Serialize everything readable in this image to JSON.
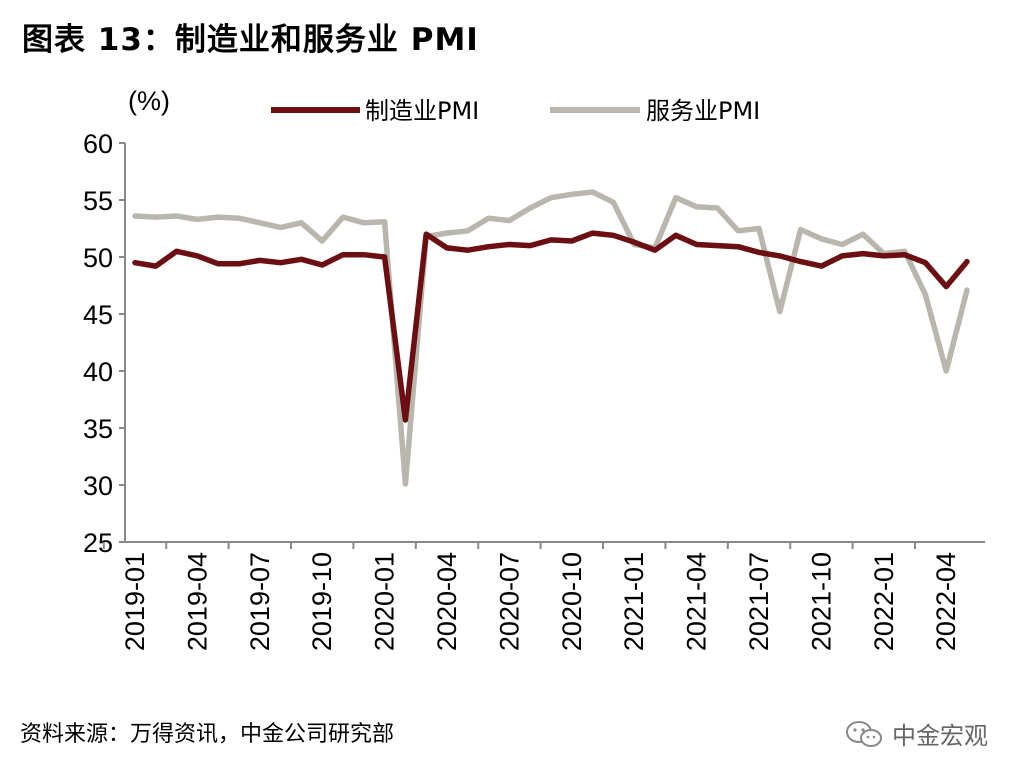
{
  "title": "图表 13：制造业和服务业 PMI",
  "source": "资料来源：万得资讯，中金公司研究部",
  "watermark": "中金宏观",
  "chart_data": {
    "type": "line",
    "title": "图表 13：制造业和服务业 PMI",
    "ylabel": "(%)",
    "ylim": [
      25,
      60
    ],
    "yticks": [
      25,
      30,
      35,
      40,
      45,
      50,
      55,
      60
    ],
    "grid": false,
    "legend_position": "top",
    "x_tick_labels": [
      "2019-01",
      "2019-04",
      "2019-07",
      "2019-10",
      "2020-01",
      "2020-04",
      "2020-07",
      "2020-10",
      "2021-01",
      "2021-04",
      "2021-07",
      "2021-10",
      "2022-01",
      "2022-04"
    ],
    "x": [
      "2019-01",
      "2019-02",
      "2019-03",
      "2019-04",
      "2019-05",
      "2019-06",
      "2019-07",
      "2019-08",
      "2019-09",
      "2019-10",
      "2019-11",
      "2019-12",
      "2020-01",
      "2020-02",
      "2020-03",
      "2020-04",
      "2020-05",
      "2020-06",
      "2020-07",
      "2020-08",
      "2020-09",
      "2020-10",
      "2020-11",
      "2020-12",
      "2021-01",
      "2021-02",
      "2021-03",
      "2021-04",
      "2021-05",
      "2021-06",
      "2021-07",
      "2021-08",
      "2021-09",
      "2021-10",
      "2021-11",
      "2021-12",
      "2022-01",
      "2022-02",
      "2022-03",
      "2022-04",
      "2022-05"
    ],
    "series": [
      {
        "name": "制造业PMI",
        "color": "#6b0f12",
        "values": [
          49.5,
          49.2,
          50.5,
          50.1,
          49.4,
          49.4,
          49.7,
          49.5,
          49.8,
          49.3,
          50.2,
          50.2,
          50.0,
          35.7,
          52.0,
          50.8,
          50.6,
          50.9,
          51.1,
          51.0,
          51.5,
          51.4,
          52.1,
          51.9,
          51.3,
          50.6,
          51.9,
          51.1,
          51.0,
          50.9,
          50.4,
          50.1,
          49.6,
          49.2,
          50.1,
          50.3,
          50.1,
          50.2,
          49.5,
          47.4,
          49.6
        ]
      },
      {
        "name": "服务业PMI",
        "color": "#b9b6ad",
        "values": [
          53.6,
          53.5,
          53.6,
          53.3,
          53.5,
          53.4,
          53.0,
          52.6,
          53.0,
          51.4,
          53.5,
          53.0,
          53.1,
          30.1,
          51.8,
          52.1,
          52.3,
          53.4,
          53.2,
          54.3,
          55.2,
          55.5,
          55.7,
          54.8,
          51.1,
          50.8,
          55.2,
          54.4,
          54.3,
          52.3,
          52.5,
          45.2,
          52.4,
          51.6,
          51.1,
          52.0,
          50.3,
          50.5,
          46.7,
          40.0,
          47.1
        ]
      }
    ]
  }
}
